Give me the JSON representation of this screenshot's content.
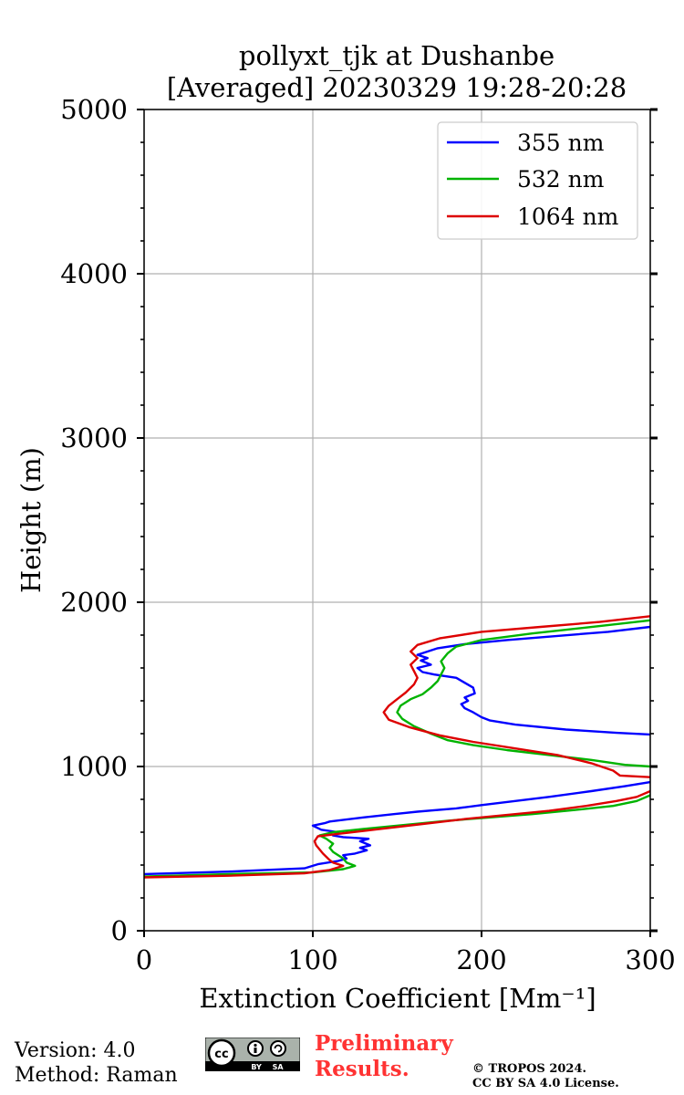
{
  "chart_data": {
    "type": "line",
    "title": "pollyxt_tjk at Dushanbe",
    "subtitle": "[Averaged] 20230329 19:28-20:28",
    "xlabel": "Extinction Coefficient [Mm⁻¹]",
    "ylabel": "Height (m)",
    "xlim": [
      0,
      300
    ],
    "ylim": [
      0,
      5000
    ],
    "xticks": [
      0,
      100,
      200,
      300
    ],
    "yticks": [
      0,
      1000,
      2000,
      3000,
      4000,
      5000
    ],
    "xtick_labels": [
      "0",
      "100",
      "200",
      "300"
    ],
    "ytick_labels": [
      "0",
      "1000",
      "2000",
      "3000",
      "4000",
      "5000"
    ],
    "grid": true,
    "legend_position": "top-right",
    "series": [
      {
        "name": "355 nm",
        "color": "#0000ff",
        "points": [
          [
            0,
            345
          ],
          [
            50,
            360
          ],
          [
            95,
            380
          ],
          [
            103,
            405
          ],
          [
            115,
            425
          ],
          [
            120,
            440
          ],
          [
            118,
            460
          ],
          [
            125,
            470
          ],
          [
            132,
            490
          ],
          [
            128,
            505
          ],
          [
            134,
            520
          ],
          [
            128,
            545
          ],
          [
            133,
            560
          ],
          [
            118,
            570
          ],
          [
            112,
            580
          ],
          [
            115,
            600
          ],
          [
            105,
            615
          ],
          [
            100,
            640
          ],
          [
            107,
            655
          ],
          [
            110,
            665
          ],
          [
            130,
            690
          ],
          [
            148,
            710
          ],
          [
            162,
            725
          ],
          [
            185,
            745
          ],
          [
            200,
            765
          ],
          [
            220,
            790
          ],
          [
            240,
            815
          ],
          [
            265,
            850
          ],
          [
            285,
            880
          ],
          [
            300,
            905
          ]
        ]
      },
      {
        "name": "355 nm",
        "color": "#0000ff",
        "points": [
          [
            300,
            1195
          ],
          [
            280,
            1205
          ],
          [
            250,
            1225
          ],
          [
            220,
            1255
          ],
          [
            205,
            1280
          ],
          [
            200,
            1300
          ],
          [
            195,
            1330
          ],
          [
            190,
            1355
          ],
          [
            188,
            1380
          ],
          [
            192,
            1400
          ],
          [
            190,
            1420
          ],
          [
            196,
            1445
          ],
          [
            195,
            1480
          ],
          [
            190,
            1510
          ],
          [
            185,
            1540
          ],
          [
            172,
            1560
          ],
          [
            165,
            1575
          ],
          [
            162,
            1600
          ],
          [
            170,
            1620
          ],
          [
            164,
            1645
          ],
          [
            168,
            1660
          ],
          [
            162,
            1680
          ],
          [
            168,
            1700
          ],
          [
            174,
            1720
          ],
          [
            190,
            1745
          ],
          [
            215,
            1770
          ],
          [
            245,
            1795
          ],
          [
            275,
            1820
          ],
          [
            300,
            1850
          ]
        ]
      },
      {
        "name": "532 nm",
        "color": "#00b300",
        "points": [
          [
            0,
            330
          ],
          [
            50,
            345
          ],
          [
            100,
            355
          ],
          [
            118,
            375
          ],
          [
            125,
            395
          ],
          [
            120,
            415
          ],
          [
            118,
            440
          ],
          [
            115,
            460
          ],
          [
            112,
            480
          ],
          [
            110,
            505
          ],
          [
            112,
            530
          ],
          [
            108,
            560
          ],
          [
            104,
            580
          ],
          [
            112,
            600
          ],
          [
            130,
            620
          ],
          [
            155,
            645
          ],
          [
            180,
            670
          ],
          [
            205,
            690
          ],
          [
            230,
            710
          ],
          [
            255,
            735
          ],
          [
            278,
            760
          ],
          [
            292,
            790
          ],
          [
            300,
            825
          ]
        ]
      },
      {
        "name": "532 nm",
        "color": "#00b300",
        "points": [
          [
            300,
            1000
          ],
          [
            285,
            1010
          ],
          [
            265,
            1040
          ],
          [
            240,
            1070
          ],
          [
            215,
            1100
          ],
          [
            195,
            1130
          ],
          [
            180,
            1160
          ],
          [
            170,
            1200
          ],
          [
            160,
            1245
          ],
          [
            153,
            1290
          ],
          [
            150,
            1330
          ],
          [
            152,
            1370
          ],
          [
            158,
            1410
          ],
          [
            165,
            1440
          ],
          [
            170,
            1480
          ],
          [
            174,
            1520
          ],
          [
            176,
            1560
          ],
          [
            178,
            1600
          ],
          [
            176,
            1640
          ],
          [
            180,
            1690
          ],
          [
            185,
            1730
          ],
          [
            200,
            1770
          ],
          [
            230,
            1810
          ],
          [
            270,
            1855
          ],
          [
            300,
            1890
          ]
        ]
      },
      {
        "name": "1064 nm",
        "color": "#dd0000",
        "points": [
          [
            0,
            325
          ],
          [
            50,
            335
          ],
          [
            95,
            350
          ],
          [
            110,
            370
          ],
          [
            118,
            395
          ],
          [
            112,
            415
          ],
          [
            110,
            430
          ],
          [
            108,
            450
          ],
          [
            106,
            470
          ],
          [
            104,
            495
          ],
          [
            102,
            520
          ],
          [
            101,
            545
          ],
          [
            103,
            575
          ],
          [
            115,
            590
          ],
          [
            140,
            620
          ],
          [
            165,
            650
          ],
          [
            190,
            680
          ],
          [
            215,
            705
          ],
          [
            240,
            730
          ],
          [
            262,
            760
          ],
          [
            280,
            790
          ],
          [
            292,
            815
          ],
          [
            300,
            850
          ]
        ]
      },
      {
        "name": "1064 nm",
        "color": "#dd0000",
        "points": [
          [
            300,
            935
          ],
          [
            282,
            945
          ],
          [
            278,
            975
          ],
          [
            265,
            1020
          ],
          [
            245,
            1070
          ],
          [
            220,
            1110
          ],
          [
            195,
            1150
          ],
          [
            175,
            1190
          ],
          [
            157,
            1240
          ],
          [
            145,
            1285
          ],
          [
            142,
            1330
          ],
          [
            145,
            1370
          ],
          [
            150,
            1410
          ],
          [
            155,
            1450
          ],
          [
            160,
            1500
          ],
          [
            162,
            1540
          ],
          [
            160,
            1580
          ],
          [
            158,
            1620
          ],
          [
            162,
            1660
          ],
          [
            158,
            1700
          ],
          [
            162,
            1740
          ],
          [
            175,
            1780
          ],
          [
            200,
            1820
          ],
          [
            235,
            1850
          ],
          [
            270,
            1880
          ],
          [
            300,
            1915
          ]
        ]
      }
    ]
  },
  "legend": {
    "items": [
      {
        "label": "355 nm",
        "color": "#0000ff"
      },
      {
        "label": "532 nm",
        "color": "#00b300"
      },
      {
        "label": "1064 nm",
        "color": "#dd0000"
      }
    ]
  },
  "footer": {
    "version": "Version: 4.0",
    "method": "Method: Raman",
    "preliminary_line1": "Preliminary",
    "preliminary_line2": "Results.",
    "preliminary_color": "#ff3333",
    "copyright_line1": "© TROPOS 2024.",
    "copyright_line2": "CC BY SA 4.0 License.",
    "license_badge_text": "BY SA"
  }
}
